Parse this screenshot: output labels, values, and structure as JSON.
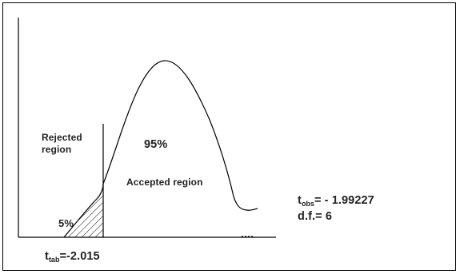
{
  "labels": {
    "rejected_line1": "Rejected",
    "rejected_line2": "region",
    "percent_95": "95%",
    "accepted": "Accepted region",
    "percent_5": "5%",
    "t_tab_base": "t",
    "t_tab_sub": "tab",
    "t_tab_value": "=-2.015",
    "t_obs_base": "t",
    "t_obs_sub": "obs",
    "t_obs_value": "= - 1.99227",
    "df": "d.f.= 6"
  }
}
